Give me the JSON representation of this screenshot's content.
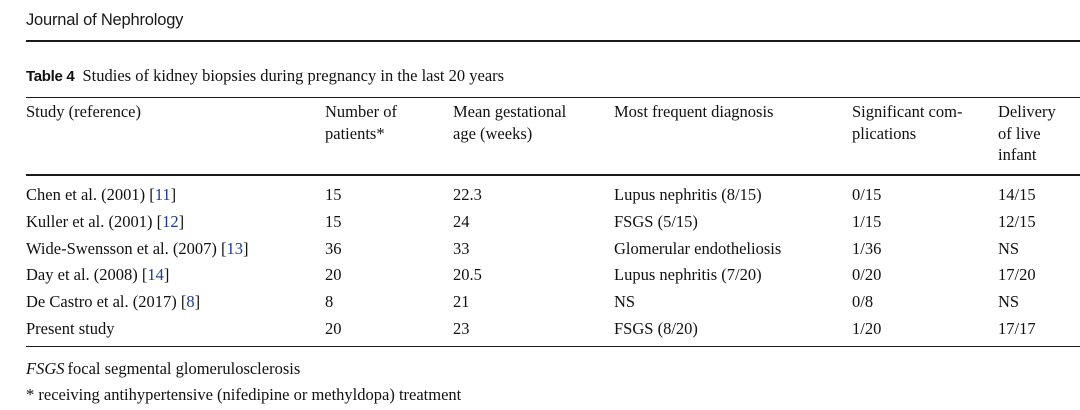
{
  "header": {
    "journal_title": "Journal of Nephrology"
  },
  "table": {
    "label": "Table 4",
    "caption": "Studies of kidney biopsies during pregnancy in the last 20 years",
    "columns": [
      [
        "Study (reference)"
      ],
      [
        "Number of",
        "patients*"
      ],
      [
        "Mean gestational",
        "age (weeks)"
      ],
      [
        "Most frequent diagnosis"
      ],
      [
        "Significant com-",
        "plications"
      ],
      [
        "Delivery",
        "of live",
        "infant"
      ]
    ],
    "rows": [
      {
        "study": "Chen et al. (2001)",
        "ref": "11",
        "patients": "15",
        "age": "22.3",
        "diagnosis": "Lupus nephritis (8/15)",
        "complications": "0/15",
        "delivery": "14/15"
      },
      {
        "study": "Kuller et al. (2001)",
        "ref": "12",
        "patients": "15",
        "age": "24",
        "diagnosis": "FSGS (5/15)",
        "complications": "1/15",
        "delivery": "12/15"
      },
      {
        "study": "Wide-Swensson et al. (2007)",
        "ref": "13",
        "patients": "36",
        "age": "33",
        "diagnosis": "Glomerular endotheliosis",
        "complications": "1/36",
        "delivery": "NS"
      },
      {
        "study": "Day et al. (2008)",
        "ref": "14",
        "patients": "20",
        "age": "20.5",
        "diagnosis": "Lupus nephritis (7/20)",
        "complications": "0/20",
        "delivery": "17/20"
      },
      {
        "study": "De Castro et al. (2017)",
        "ref": "8",
        "patients": "8",
        "age": "21",
        "diagnosis": "NS",
        "complications": "0/8",
        "delivery": "NS"
      },
      {
        "study": "Present study",
        "ref": "",
        "patients": "20",
        "age": "23",
        "diagnosis": "FSGS (8/20)",
        "complications": "1/20",
        "delivery": "17/17"
      }
    ]
  },
  "footnotes": {
    "abbreviation": "FSGS",
    "abbreviation_text": "focal segmental glomerulosclerosis",
    "asterisk_note": "* receiving antihypertensive (nifedipine or methyldopa) treatment"
  },
  "colors": {
    "text": "#111111",
    "rule": "#1a1a1a",
    "reference_link": "#1a3a8c"
  }
}
